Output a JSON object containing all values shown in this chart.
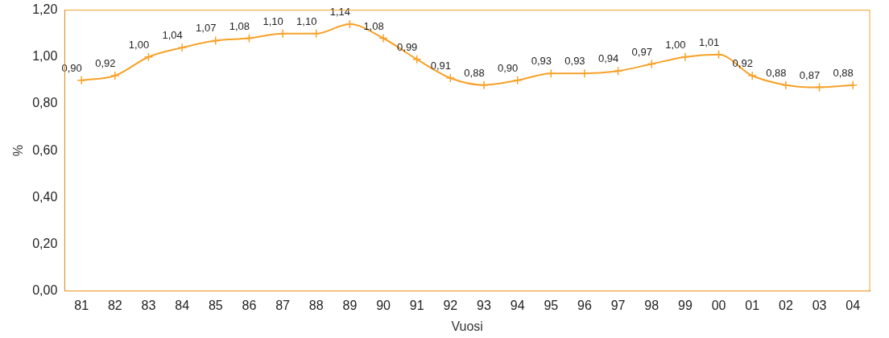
{
  "chart_data": {
    "type": "line",
    "xlabel": "Vuosi",
    "ylabel": "%",
    "categories": [
      "81",
      "82",
      "83",
      "84",
      "85",
      "86",
      "87",
      "88",
      "89",
      "90",
      "91",
      "92",
      "93",
      "94",
      "95",
      "96",
      "97",
      "98",
      "99",
      "00",
      "01",
      "02",
      "03",
      "04"
    ],
    "values": [
      0.9,
      0.92,
      1.0,
      1.04,
      1.07,
      1.08,
      1.1,
      1.1,
      1.14,
      1.08,
      0.99,
      0.91,
      0.88,
      0.9,
      0.93,
      0.93,
      0.94,
      0.97,
      1.0,
      1.01,
      0.92,
      0.88,
      0.87,
      0.88
    ],
    "value_labels": [
      "0,90",
      "0,92",
      "1,00",
      "1,04",
      "1,07",
      "1,08",
      "1,10",
      "1,10",
      "1,14",
      "1,08",
      "0,99",
      "0,91",
      "0,88",
      "0,90",
      "0,93",
      "0,93",
      "0,94",
      "0,97",
      "1,00",
      "1,01",
      "0,92",
      "0,88",
      "0,87",
      "0,88"
    ],
    "color": "#f7a128",
    "marker": "cross",
    "line_style": "solid",
    "grid": false,
    "legend": false,
    "ylim": [
      0,
      1.2
    ],
    "yticks": [
      {
        "value": 0,
        "label": "0,00"
      },
      {
        "value": 0.2,
        "label": "0,20"
      },
      {
        "value": 0.4,
        "label": "0,40"
      },
      {
        "value": 0.6,
        "label": "0,60"
      },
      {
        "value": 0.8,
        "label": "0,80"
      },
      {
        "value": 1.0,
        "label": "1,00"
      },
      {
        "value": 1.2,
        "label": "1,20"
      }
    ]
  }
}
